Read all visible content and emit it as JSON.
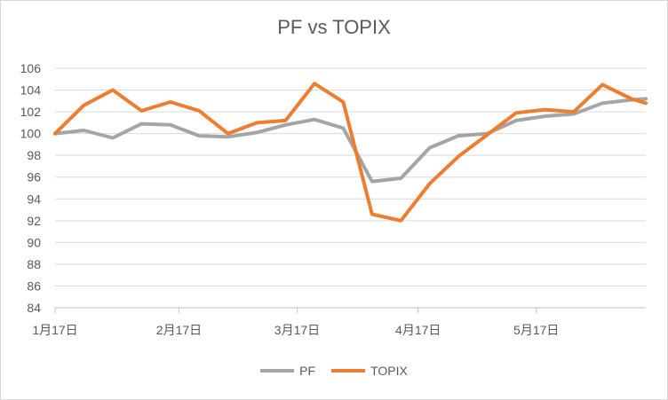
{
  "chart_data": {
    "type": "line",
    "title": "PF vs TOPIX",
    "ylim": [
      84,
      106
    ],
    "yticks": [
      84,
      86,
      88,
      90,
      92,
      94,
      96,
      98,
      100,
      102,
      104,
      106
    ],
    "xticks": [
      {
        "label": "1月17日",
        "x": 0
      },
      {
        "label": "2月17日",
        "x": 4.3
      },
      {
        "label": "3月17日",
        "x": 8.4
      },
      {
        "label": "4月17日",
        "x": 12.6
      },
      {
        "label": "5月17日",
        "x": 16.7
      }
    ],
    "xlim": [
      0,
      20.5
    ],
    "grid": true,
    "legend_position": "bottom",
    "series": [
      {
        "name": "PF",
        "color": "#a5a5a5",
        "x": [
          0,
          1,
          2,
          3,
          4,
          5,
          6,
          7,
          8,
          9,
          10,
          11,
          12,
          13,
          14,
          15,
          16,
          17,
          18,
          19,
          20,
          20.5
        ],
        "values": [
          100.0,
          100.3,
          99.6,
          100.9,
          100.8,
          99.8,
          99.7,
          100.1,
          100.8,
          101.3,
          100.5,
          95.6,
          95.9,
          98.7,
          99.8,
          100.0,
          101.2,
          101.6,
          101.8,
          102.8,
          103.1,
          103.2
        ]
      },
      {
        "name": "TOPIX",
        "color": "#ed7d31",
        "x": [
          0,
          1,
          2,
          3,
          4,
          5,
          6,
          7,
          8,
          9,
          10,
          11,
          12,
          13,
          14,
          15,
          16,
          17,
          18,
          19,
          20,
          20.5
        ],
        "values": [
          100.0,
          102.6,
          104.0,
          102.1,
          102.9,
          102.1,
          100.0,
          101.0,
          101.2,
          104.6,
          102.9,
          92.6,
          92.0,
          95.4,
          97.9,
          99.9,
          101.9,
          102.2,
          102.0,
          104.5,
          103.2,
          102.8
        ]
      }
    ]
  }
}
